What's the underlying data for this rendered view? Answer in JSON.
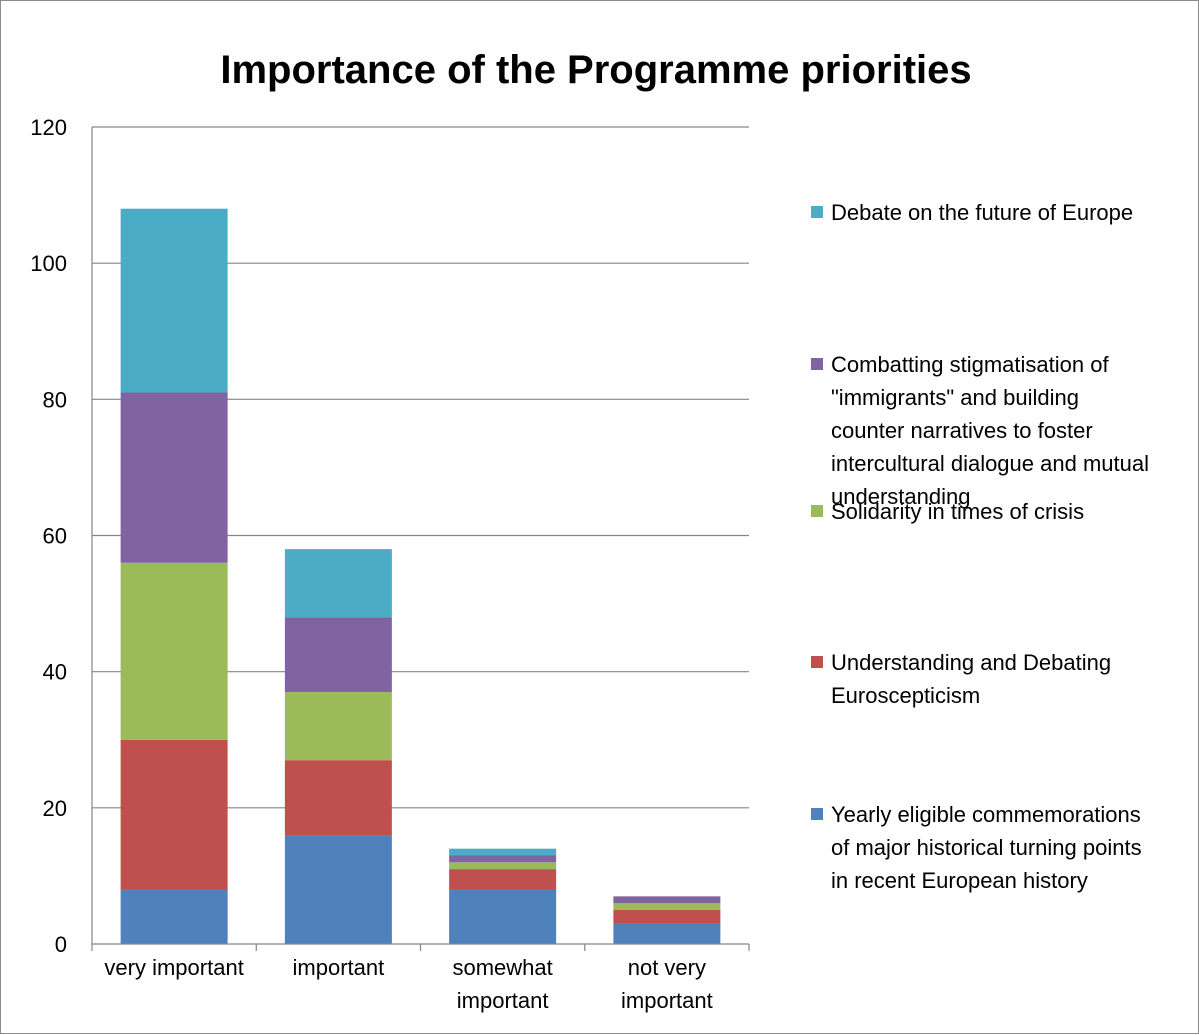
{
  "chart_data": {
    "type": "bar",
    "stacked": true,
    "title": "Importance of the Programme priorities",
    "xlabel": "",
    "ylabel": "",
    "ylim": [
      0,
      120
    ],
    "yticks": [
      "0",
      "20",
      "40",
      "60",
      "80",
      "100",
      "120"
    ],
    "yticks_values": [
      0,
      20,
      40,
      60,
      80,
      100,
      120
    ],
    "grid": true,
    "legend_position": "right",
    "categories": [
      [
        "very important"
      ],
      [
        "important"
      ],
      [
        "somewhat",
        "important"
      ],
      [
        "not very",
        "important"
      ]
    ],
    "series": [
      {
        "name": [
          "Yearly eligible commemorations",
          "of major historical turning points",
          "in recent European history"
        ],
        "color": "#4F81BD",
        "values": [
          8,
          16,
          8,
          3
        ]
      },
      {
        "name": [
          " Understanding and Debating",
          "Euroscepticism"
        ],
        "color": "#C0504D",
        "values": [
          22,
          11,
          3,
          2
        ]
      },
      {
        "name": [
          " Solidarity in times of crisis"
        ],
        "color": "#9BBB59",
        "values": [
          26,
          10,
          1,
          1
        ]
      },
      {
        "name": [
          "Combatting stigmatisation of",
          "\"immigrants\" and building",
          "counter narratives to foster",
          "intercultural dialogue and mutual",
          "understanding"
        ],
        "color": "#8064A2",
        "values": [
          25,
          11,
          1,
          1
        ]
      },
      {
        "name": [
          "Debate on the future of Europe"
        ],
        "color": "#4BACC6",
        "values": [
          27,
          10,
          1,
          0
        ]
      }
    ]
  }
}
